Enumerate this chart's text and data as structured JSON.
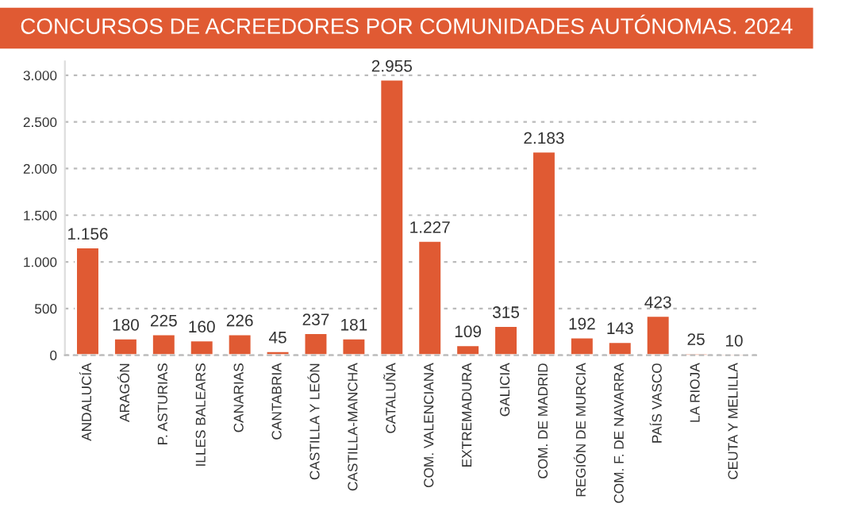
{
  "chart_data": {
    "type": "bar",
    "title": "CONCURSOS DE ACREEDORES POR COMUNIDADES AUTÓNOMAS. 2024",
    "categories": [
      "ANDALUCÍA",
      "ARAGÓN",
      "P. ASTURIAS",
      "ILLES BALEARS",
      "CANARIAS",
      "CANTABRIA",
      "CASTILLA Y LEÓN",
      "CASTILLA-MANCHA",
      "CATALUÑA",
      "COM. VALENCIANA",
      "EXTREMADURA",
      "GALICIA",
      "COM. DE MADRID",
      "REGIÓN DE MURCIA",
      "COM. F. DE NAVARRA",
      "PAÍS VASCO",
      "LA RIOJA",
      "CEUTA Y MELILLA"
    ],
    "values": [
      1156,
      180,
      225,
      160,
      226,
      45,
      237,
      181,
      2955,
      1227,
      109,
      315,
      2183,
      192,
      143,
      423,
      25,
      10
    ],
    "value_labels": [
      "1.156",
      "180",
      "225",
      "160",
      "226",
      "45",
      "237",
      "181",
      "2.955",
      "1.227",
      "109",
      "315",
      "2.183",
      "192",
      "143",
      "423",
      "25",
      "10"
    ],
    "color": "#e05a33",
    "ylim": [
      0,
      3150
    ],
    "yticks": [
      0,
      {
        "value": 500,
        "label": "500"
      },
      {
        "value": 1000,
        "label": "1.000"
      },
      {
        "value": 1500,
        "label": "1.500"
      },
      {
        "value": 2000,
        "label": "2.000"
      },
      {
        "value": 2500,
        "label": "2.500"
      },
      {
        "value": 3000,
        "label": "3.000"
      }
    ],
    "grid": "y",
    "legend": false
  }
}
